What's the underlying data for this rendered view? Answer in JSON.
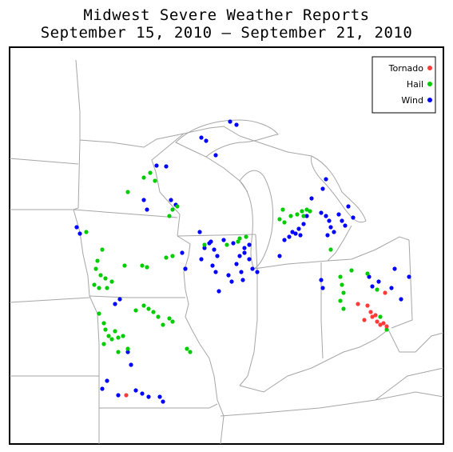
{
  "title": {
    "line1": "Midwest Severe Weather Reports",
    "line2": "September 15, 2010 – September 21, 2010"
  },
  "legend": {
    "placement": "top-right",
    "items": [
      {
        "label": "Tornado",
        "color": "#ff3b3b"
      },
      {
        "label": "Hail",
        "color": "#00cc00"
      },
      {
        "label": "Wind",
        "color": "#0000ff"
      }
    ]
  },
  "colors": {
    "border": "#000000",
    "state_lines": "#a6a6a6"
  }
}
